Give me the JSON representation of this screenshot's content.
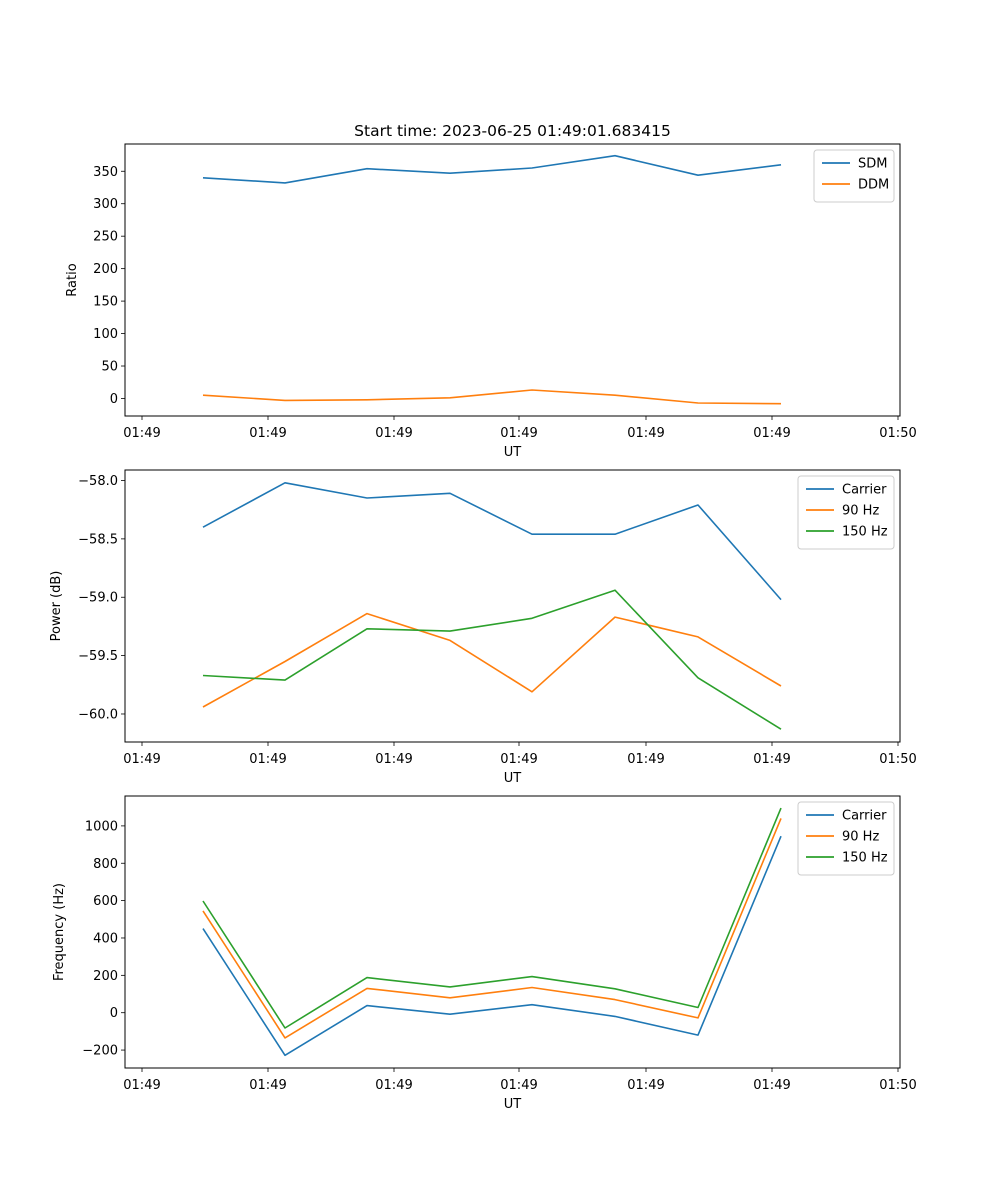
{
  "chart_data": [
    {
      "type": "line",
      "title": "Start time: 2023-06-25 01:49:01.683415",
      "xlabel": "UT",
      "ylabel": "Ratio",
      "x_tick_labels": [
        "01:49",
        "01:49",
        "01:49",
        "01:49",
        "01:49",
        "01:49",
        "01:50"
      ],
      "ylim": [
        -27,
        392
      ],
      "y_ticks": [
        0,
        50,
        100,
        150,
        200,
        250,
        300,
        350
      ],
      "legend_position": "top-right",
      "grid": false,
      "series": [
        {
          "name": "SDM",
          "color": "#1f77b4",
          "values": [
            340,
            332,
            354,
            347,
            355,
            374,
            344,
            360
          ]
        },
        {
          "name": "DDM",
          "color": "#ff7f0e",
          "values": [
            5,
            -3,
            -2,
            1,
            13,
            5,
            -7,
            -8
          ]
        }
      ]
    },
    {
      "type": "line",
      "title": "",
      "xlabel": "UT",
      "ylabel": "Power (dB)",
      "x_tick_labels": [
        "01:49",
        "01:49",
        "01:49",
        "01:49",
        "01:49",
        "01:49",
        "01:50"
      ],
      "ylim": [
        -60.24,
        -57.91
      ],
      "y_ticks": [
        -60.0,
        -59.5,
        -59.0,
        -58.5,
        -58.0
      ],
      "y_tick_labels": [
        "−60.0",
        "−59.5",
        "−59.0",
        "−58.5",
        "−58.0"
      ],
      "legend_position": "top-right",
      "grid": false,
      "series": [
        {
          "name": "Carrier",
          "color": "#1f77b4",
          "values": [
            -58.4,
            -58.02,
            -58.15,
            -58.11,
            -58.46,
            -58.46,
            -58.21,
            -59.02
          ]
        },
        {
          "name": "90 Hz",
          "color": "#ff7f0e",
          "values": [
            -59.94,
            -59.55,
            -59.14,
            -59.37,
            -59.81,
            -59.17,
            -59.34,
            -59.76
          ]
        },
        {
          "name": "150 Hz",
          "color": "#2ca02c",
          "values": [
            -59.67,
            -59.71,
            -59.27,
            -59.29,
            -59.18,
            -58.94,
            -59.69,
            -60.13
          ]
        }
      ]
    },
    {
      "type": "line",
      "title": "",
      "xlabel": "UT",
      "ylabel": "Frequency (Hz)",
      "x_tick_labels": [
        "01:49",
        "01:49",
        "01:49",
        "01:49",
        "01:49",
        "01:49",
        "01:50"
      ],
      "ylim": [
        -296,
        1160
      ],
      "y_ticks": [
        -200,
        0,
        200,
        400,
        600,
        800,
        1000
      ],
      "y_tick_labels": [
        "−200",
        "0",
        "200",
        "400",
        "600",
        "800",
        "1000"
      ],
      "legend_position": "top-right",
      "grid": false,
      "series": [
        {
          "name": "Carrier",
          "color": "#1f77b4",
          "values": [
            450,
            -228,
            38,
            -8,
            43,
            -20,
            -120,
            945
          ]
        },
        {
          "name": "90 Hz",
          "color": "#ff7f0e",
          "values": [
            545,
            -135,
            130,
            80,
            135,
            70,
            -28,
            1040
          ]
        },
        {
          "name": "150 Hz",
          "color": "#2ca02c",
          "values": [
            598,
            -82,
            188,
            138,
            193,
            128,
            28,
            1095
          ]
        }
      ]
    }
  ]
}
